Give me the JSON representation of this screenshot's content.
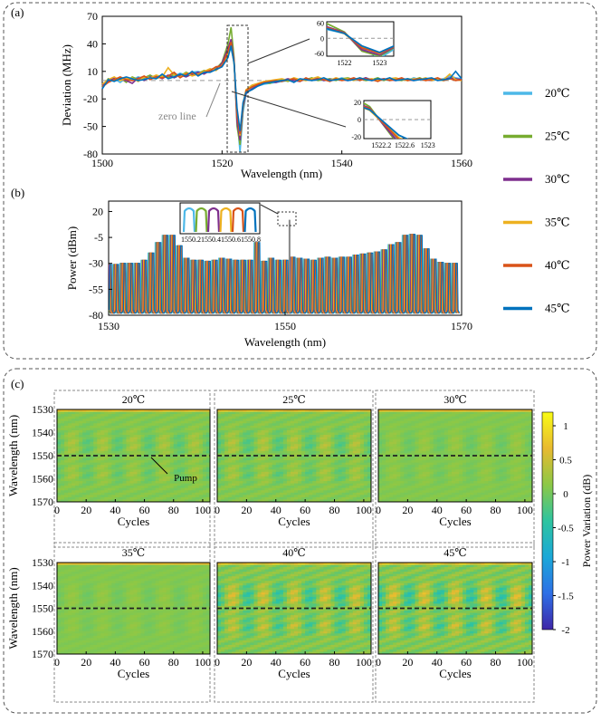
{
  "panel_labels": {
    "a": "(a)",
    "b": "(b)",
    "c": "(c)"
  },
  "legend": {
    "entries": [
      {
        "label": "20℃",
        "color": "#4db8e8"
      },
      {
        "label": "25℃",
        "color": "#77ac30"
      },
      {
        "label": "30℃",
        "color": "#7e2f8e"
      },
      {
        "label": "35℃",
        "color": "#edb120"
      },
      {
        "label": "40℃",
        "color": "#d95319"
      },
      {
        "label": "45℃",
        "color": "#0072bd"
      }
    ]
  },
  "chart_data": [
    {
      "id": "a",
      "type": "line",
      "xlabel": "Wavelength (nm)",
      "ylabel": "Deviation (MHz)",
      "xlim": [
        1500,
        1560
      ],
      "ylim": [
        -80,
        70
      ],
      "xticks": [
        "1500",
        "1520",
        "1540",
        "1560"
      ],
      "yticks": [
        "70",
        "40",
        "10",
        "-20",
        "-50",
        "-80"
      ],
      "annotation": "zero line",
      "x": [
        1500,
        1501,
        1502,
        1503,
        1504,
        1505,
        1506,
        1507,
        1508,
        1509,
        1510,
        1511,
        1512,
        1513,
        1514,
        1515,
        1516,
        1517,
        1518,
        1519,
        1520,
        1521,
        1521.5,
        1522,
        1522.5,
        1523,
        1523.5,
        1524,
        1525,
        1526,
        1527,
        1528,
        1529,
        1530,
        1531,
        1532,
        1533,
        1534,
        1535,
        1536,
        1537,
        1538,
        1539,
        1540,
        1541,
        1542,
        1543,
        1544,
        1545,
        1546,
        1547,
        1548,
        1549,
        1550,
        1551,
        1552,
        1553,
        1554,
        1555,
        1556,
        1557,
        1558,
        1559,
        1560
      ],
      "series": [
        {
          "name": "20℃",
          "values": [
            -8,
            0,
            2,
            -2,
            3,
            1,
            4,
            2,
            5,
            3,
            6,
            4,
            5,
            8,
            6,
            9,
            10,
            8,
            12,
            14,
            18,
            30,
            35,
            20,
            -40,
            -78,
            -35,
            -15,
            -8,
            -6,
            -4,
            -3,
            -2,
            -1,
            0,
            -1,
            1,
            0,
            2,
            1,
            0,
            2,
            1,
            3,
            1,
            2,
            0,
            3,
            1,
            2,
            1,
            0,
            2,
            1,
            0,
            3,
            1,
            2,
            0,
            1,
            2,
            5,
            3,
            2
          ]
        },
        {
          "name": "25℃",
          "values": [
            -6,
            2,
            0,
            3,
            -2,
            4,
            1,
            3,
            6,
            2,
            5,
            3,
            7,
            5,
            9,
            6,
            8,
            11,
            10,
            13,
            20,
            40,
            58,
            25,
            -50,
            -70,
            -30,
            -12,
            -6,
            -4,
            -2,
            -3,
            0,
            1,
            -1,
            2,
            0,
            1,
            3,
            0,
            1,
            2,
            0,
            2,
            3,
            1,
            2,
            0,
            1,
            3,
            0,
            2,
            1,
            0,
            2,
            1,
            3,
            0,
            2,
            1,
            0,
            2,
            1,
            0
          ]
        },
        {
          "name": "30℃",
          "values": [
            -5,
            -1,
            3,
            1,
            0,
            -3,
            3,
            0,
            4,
            5,
            2,
            6,
            3,
            6,
            4,
            7,
            9,
            7,
            11,
            12,
            19,
            35,
            45,
            22,
            -45,
            -65,
            -28,
            -14,
            -9,
            -5,
            -3,
            -1,
            -2,
            0,
            2,
            0,
            -1,
            2,
            1,
            3,
            0,
            1,
            2,
            1,
            0,
            2,
            1,
            3,
            0,
            1,
            2,
            1,
            0,
            2,
            1,
            0,
            2,
            1,
            0,
            2,
            1,
            3,
            2,
            1
          ]
        },
        {
          "name": "35℃",
          "values": [
            -4,
            1,
            4,
            0,
            2,
            3,
            -1,
            4,
            3,
            6,
            4,
            14,
            6,
            4,
            8,
            5,
            7,
            10,
            13,
            11,
            17,
            28,
            40,
            18,
            -35,
            -60,
            -25,
            -10,
            -5,
            -3,
            -1,
            0,
            1,
            2,
            0,
            3,
            1,
            0,
            2,
            4,
            1,
            0,
            3,
            1,
            2,
            0,
            3,
            1,
            2,
            0,
            1,
            2,
            3,
            1,
            0,
            2,
            1,
            3,
            0,
            2,
            1,
            7,
            1,
            0
          ]
        },
        {
          "name": "40℃",
          "values": [
            -7,
            -2,
            1,
            4,
            1,
            0,
            2,
            5,
            1,
            4,
            3,
            5,
            9,
            3,
            7,
            8,
            6,
            9,
            11,
            15,
            16,
            32,
            42,
            21,
            -38,
            -58,
            -27,
            -11,
            -7,
            -4,
            -2,
            -1,
            0,
            -1,
            1,
            2,
            -1,
            3,
            0,
            2,
            1,
            -1,
            2,
            0,
            1,
            3,
            0,
            2,
            1,
            -1,
            2,
            0,
            1,
            3,
            0,
            1,
            2,
            0,
            1,
            3,
            0,
            2,
            0,
            1
          ]
        },
        {
          "name": "45℃",
          "values": [
            -9,
            1,
            -1,
            2,
            4,
            2,
            0,
            1,
            3,
            2,
            7,
            2,
            4,
            7,
            5,
            10,
            5,
            9,
            9,
            12,
            15,
            25,
            38,
            19,
            -30,
            -55,
            -24,
            -13,
            -10,
            -6,
            -3,
            -2,
            -1,
            0,
            1,
            -2,
            2,
            1,
            0,
            1,
            3,
            0,
            1,
            2,
            0,
            1,
            3,
            1,
            0,
            2,
            1,
            3,
            0,
            1,
            2,
            0,
            1,
            2,
            3,
            0,
            1,
            2,
            10,
            2
          ]
        }
      ],
      "insets": [
        {
          "xlim": [
            1521.5,
            1523.4
          ],
          "ylim": [
            -70,
            65
          ],
          "xticks": [
            "1522",
            "1523"
          ],
          "yticks": [
            "60",
            "0",
            "-60"
          ]
        },
        {
          "xlim": [
            1521.9,
            1523.05
          ],
          "ylim": [
            -22,
            22
          ],
          "xticks": [
            "1522.2",
            "1522.6",
            "1523"
          ],
          "yticks": [
            "20",
            "0",
            "-20"
          ]
        }
      ]
    },
    {
      "id": "b",
      "type": "line",
      "xlabel": "Wavelength (nm)",
      "ylabel": "Power (dBm)",
      "xlim": [
        1530,
        1570
      ],
      "ylim": [
        -80,
        30
      ],
      "xticks": [
        "1530",
        "1550",
        "1570"
      ],
      "yticks": [
        "20",
        "-5",
        "-30",
        "-55",
        "-80"
      ],
      "comb": {
        "start_nm": 1530.0,
        "spacing_nm": 0.8,
        "count": 50,
        "floor_dbm": -78,
        "peaks_dbm": [
          -31,
          -31,
          -30,
          -30,
          -30,
          -27,
          -20,
          -10,
          -3,
          -3,
          -13,
          -25,
          -27,
          -27,
          -28,
          -27,
          -25,
          -26,
          -27,
          -27,
          -27,
          -10,
          -28,
          -25,
          -27,
          -27,
          -24,
          -25,
          -26,
          -27,
          -25,
          -24,
          -25,
          -24,
          -24,
          -22,
          -21,
          -20,
          -19,
          -17,
          -12,
          -10,
          -3,
          -2,
          -3,
          -16,
          -26,
          -29,
          -30,
          -30
        ],
        "pump_nm": 1550.5,
        "pump_dbm": 12
      },
      "inset": {
        "xticks": [
          "1550.2",
          "1550.4",
          "1550.6",
          "1550.8"
        ]
      }
    },
    {
      "id": "c",
      "type": "heatmap",
      "xlabel": "Cycles",
      "ylabel": "Wavelength (nm)",
      "xlim": [
        0,
        105
      ],
      "ylim": [
        1530,
        1570
      ],
      "xticks": [
        "0",
        "20",
        "40",
        "60",
        "80",
        "100"
      ],
      "yticks": [
        "1530",
        "1540",
        "1550",
        "1560",
        "1570"
      ],
      "pump_label": "Pump",
      "colorbar": {
        "label": "Power Variation (dB)",
        "range": [
          -2,
          1.2
        ],
        "ticks": [
          "1",
          "0.5",
          "0",
          "-0.5",
          "-1",
          "-1.5",
          "-2"
        ],
        "colors": [
          "#3e26a8",
          "#2e6fe6",
          "#1ba8d8",
          "#2ec4a0",
          "#8cc846",
          "#e8ba30",
          "#f9fb15"
        ]
      },
      "panels": [
        {
          "title": "20℃",
          "amplitude": 0.25
        },
        {
          "title": "25℃",
          "amplitude": 0.3
        },
        {
          "title": "30℃",
          "amplitude": 0.15
        },
        {
          "title": "35℃",
          "amplitude": 0.12
        },
        {
          "title": "40℃",
          "amplitude": 0.5
        },
        {
          "title": "45℃",
          "amplitude": 0.55
        }
      ]
    }
  ]
}
